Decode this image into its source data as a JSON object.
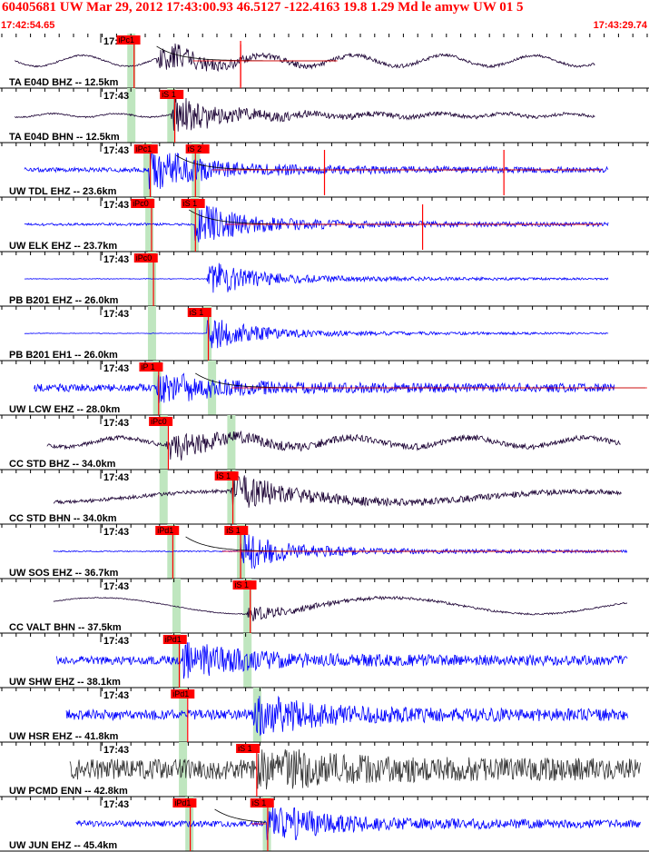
{
  "header": {
    "title": "60405681 UW Mar 29, 2012 17:43:00.93   46.5127 -122.4163 19.8 1.29 Md le amyw UW 01   5",
    "start_time": "17:42:54.65",
    "end_time": "17:43:29.74"
  },
  "colors": {
    "header_text": "#ff0000",
    "pick_box": "#ff0000",
    "pick_window": "#bfe6bf",
    "trace_blue": "#0000ff",
    "trace_dark": "#1a0033",
    "trace_gray": "#333333",
    "synthetic": "#000000"
  },
  "chart_data": {
    "type": "seismogram",
    "x_unit": "time",
    "xlim": [
      "17:42:54.65",
      "17:43:29.74"
    ],
    "minute_tick_label": "17:43",
    "tick_count": 46,
    "traces": [
      {
        "label": "TA E04D BHZ -- 12.5km",
        "color": "dark",
        "onset": 0.24,
        "amp": 0.55,
        "sig_start": 0.02,
        "sig_end": 0.92,
        "noise": 0.05,
        "swell": 0.3,
        "swell_per": 0.14,
        "picks": [
          {
            "text": "iPc1",
            "t": 0.178
          }
        ],
        "windows": [
          0.2
        ],
        "slines": [
          {
            "t": 0.205
          },
          {
            "t": 0.37
          }
        ],
        "synthetic": {
          "t0": 0.24,
          "t1": 0.52
        },
        "spikes": [
          0.37
        ]
      },
      {
        "label": "TA E04D BHN -- 12.5km",
        "color": "dark",
        "onset": 0.262,
        "amp": 0.75,
        "sig_start": 0.02,
        "sig_end": 0.92,
        "noise": 0.04,
        "swell": 0.1,
        "swell_per": 0.1,
        "picks": [
          {
            "text": "iS 1",
            "t": 0.245
          }
        ],
        "windows": [
          0.2,
          0.262
        ],
        "slines": [
          {
            "t": 0.268
          }
        ],
        "synthetic": null,
        "spikes": []
      },
      {
        "label": "UW TDL EHZ -- 23.6km",
        "color": "blue",
        "onset": 0.228,
        "amp": 0.85,
        "sig_start": 0.035,
        "sig_end": 0.94,
        "noise": 0.1,
        "swell": 0.0,
        "swell_per": 0.2,
        "picks": [
          {
            "text": "iPc1",
            "t": 0.205
          },
          {
            "text": "iS 2",
            "t": 0.285
          }
        ],
        "windows": [
          0.225,
          0.3
        ],
        "slines": [
          {
            "t": 0.23
          },
          {
            "t": 0.3
          }
        ],
        "synthetic": {
          "t0": 0.27,
          "t1": 0.93
        },
        "spikes": [
          0.5,
          0.778
        ]
      },
      {
        "label": "UW ELK EHZ -- 23.7km",
        "color": "blue",
        "onset": 0.298,
        "amp": 0.8,
        "sig_start": 0.035,
        "sig_end": 0.94,
        "noise": 0.06,
        "swell": 0.0,
        "swell_per": 0.2,
        "picks": [
          {
            "text": "iPc0",
            "t": 0.2
          },
          {
            "text": "iS 1",
            "t": 0.278
          }
        ],
        "windows": [
          0.228,
          0.298
        ],
        "slines": [
          {
            "t": 0.232
          },
          {
            "t": 0.3
          }
        ],
        "synthetic": {
          "t0": 0.29,
          "t1": 0.93
        },
        "spikes": [
          0.652
        ]
      },
      {
        "label": "PB B201 EHZ -- 26.0km",
        "color": "blue",
        "onset": 0.318,
        "amp": 0.65,
        "sig_start": 0.035,
        "sig_end": 0.94,
        "noise": 0.02,
        "swell": 0.0,
        "swell_per": 0.2,
        "picks": [
          {
            "text": "iPc0",
            "t": 0.205
          }
        ],
        "windows": [
          0.232
        ],
        "slines": [
          {
            "t": 0.235
          }
        ],
        "synthetic": null,
        "spikes": []
      },
      {
        "label": "PB B201 EH1 -- 26.0km",
        "color": "blue",
        "onset": 0.318,
        "amp": 0.6,
        "sig_start": 0.035,
        "sig_end": 0.94,
        "noise": 0.02,
        "swell": 0.0,
        "swell_per": 0.2,
        "picks": [
          {
            "text": "iS 1",
            "t": 0.288
          }
        ],
        "windows": [
          0.232,
          0.318
        ],
        "slines": [
          {
            "t": 0.32
          }
        ],
        "synthetic": null,
        "spikes": []
      },
      {
        "label": "UW LCW EHZ -- 28.0km",
        "color": "blue",
        "onset": 0.24,
        "amp": 0.6,
        "sig_start": 0.05,
        "sig_end": 0.95,
        "noise": 0.25,
        "swell": 0.0,
        "swell_per": 0.2,
        "picks": [
          {
            "text": "iP 1",
            "t": 0.213
          }
        ],
        "windows": [
          0.24,
          0.325
        ],
        "slines": [
          {
            "t": 0.243
          }
        ],
        "synthetic": {
          "t0": 0.3,
          "t1": 1.0
        },
        "spikes": []
      },
      {
        "label": "CC STD BHZ -- 34.0km",
        "color": "dark",
        "onset": 0.255,
        "amp": 0.55,
        "sig_start": 0.07,
        "sig_end": 0.96,
        "noise": 0.15,
        "swell": 0.25,
        "swell_per": 0.18,
        "picks": [
          {
            "text": "iPc0",
            "t": 0.228
          }
        ],
        "windows": [
          0.25,
          0.355
        ],
        "slines": [
          {
            "t": 0.258
          }
        ],
        "synthetic": null,
        "spikes": []
      },
      {
        "label": "CC STD BHN -- 34.0km",
        "color": "dark",
        "onset": 0.355,
        "amp": 0.7,
        "sig_start": 0.08,
        "sig_end": 0.96,
        "noise": 0.1,
        "swell": 0.3,
        "swell_per": 0.55,
        "picks": [
          {
            "text": "iS 1",
            "t": 0.33
          }
        ],
        "windows": [
          0.25,
          0.355
        ],
        "slines": [
          {
            "t": 0.358
          }
        ],
        "synthetic": null,
        "spikes": []
      },
      {
        "label": "UW SOS EHZ -- 36.7km",
        "color": "blue",
        "onset": 0.37,
        "amp": 0.7,
        "sig_start": 0.08,
        "sig_end": 0.97,
        "noise": 0.03,
        "swell": 0.0,
        "swell_per": 0.2,
        "picks": [
          {
            "text": "iPd1",
            "t": 0.238
          },
          {
            "text": "iS 1",
            "t": 0.345
          }
        ],
        "windows": [
          0.262,
          0.37
        ],
        "slines": [
          {
            "t": 0.265
          },
          {
            "t": 0.37
          }
        ],
        "synthetic": {
          "t0": 0.285,
          "t1": 0.96
        },
        "spikes": []
      },
      {
        "label": "CC VALT BHN -- 37.5km",
        "color": "dark",
        "onset": 0.38,
        "amp": 0.3,
        "sig_start": 0.08,
        "sig_end": 0.97,
        "noise": 0.06,
        "swell": 0.45,
        "swell_per": 0.45,
        "picks": [
          {
            "text": "iS 1",
            "t": 0.358
          }
        ],
        "windows": [
          0.27,
          0.38
        ],
        "slines": [
          {
            "t": 0.385
          }
        ],
        "synthetic": null,
        "spikes": []
      },
      {
        "label": "UW SHW EHZ -- 38.1km",
        "color": "blue",
        "onset": 0.28,
        "amp": 0.75,
        "sig_start": 0.085,
        "sig_end": 0.97,
        "noise": 0.22,
        "swell": 0.0,
        "swell_per": 0.2,
        "picks": [
          {
            "text": "iPd1",
            "t": 0.25
          }
        ],
        "windows": [
          0.27,
          0.38
        ],
        "slines": [
          {
            "t": 0.275
          }
        ],
        "synthetic": null,
        "spikes": []
      },
      {
        "label": "UW HSR EHZ -- 41.8km",
        "color": "blue",
        "onset": 0.39,
        "amp": 0.8,
        "sig_start": 0.1,
        "sig_end": 0.97,
        "noise": 0.25,
        "swell": 0.0,
        "swell_per": 0.2,
        "picks": [
          {
            "text": "iPd1",
            "t": 0.262
          }
        ],
        "windows": [
          0.28,
          0.395
        ],
        "slines": [
          {
            "t": 0.288
          }
        ],
        "synthetic": null,
        "spikes": []
      },
      {
        "label": "UW PCMD ENN -- 42.8km",
        "color": "gray",
        "onset": 0.395,
        "amp": 0.8,
        "sig_start": 0.105,
        "sig_end": 0.99,
        "noise": 0.5,
        "swell": 0.0,
        "swell_per": 0.2,
        "picks": [
          {
            "text": "iS 1",
            "t": 0.363
          }
        ],
        "windows": [
          0.28
        ],
        "slines": [
          {
            "t": 0.395
          }
        ],
        "synthetic": null,
        "spikes": []
      },
      {
        "label": "UW JUN EHZ -- 45.4km",
        "color": "blue",
        "onset": 0.41,
        "amp": 0.8,
        "sig_start": 0.115,
        "sig_end": 0.99,
        "noise": 0.15,
        "swell": 0.0,
        "swell_per": 0.2,
        "picks": [
          {
            "text": "iPd1",
            "t": 0.265
          },
          {
            "text": "iS 1",
            "t": 0.385
          }
        ],
        "windows": [
          0.29,
          0.41
        ],
        "slines": [
          {
            "t": 0.292
          },
          {
            "t": 0.412
          }
        ],
        "synthetic": {
          "t0": 0.33,
          "t1": 0.41
        },
        "spikes": []
      }
    ]
  }
}
